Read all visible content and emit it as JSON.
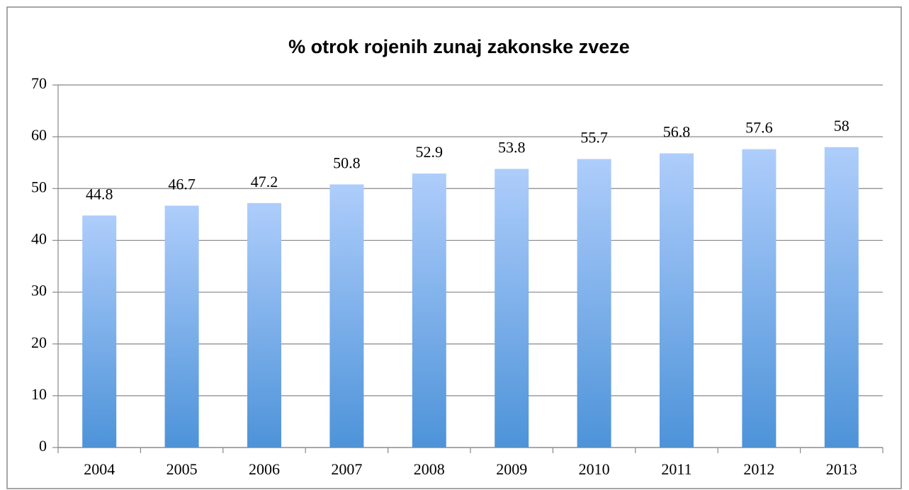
{
  "chart_data": {
    "type": "bar",
    "title": "% otrok rojenih zunaj zakonske zveze",
    "categories": [
      "2004",
      "2005",
      "2006",
      "2007",
      "2008",
      "2009",
      "2010",
      "2011",
      "2012",
      "2013"
    ],
    "values": [
      44.8,
      46.7,
      47.2,
      50.8,
      52.9,
      53.8,
      55.7,
      56.8,
      57.6,
      58
    ],
    "gradient": [
      "#aecdfb",
      "#4d93d9"
    ],
    "ylim": [
      0,
      70
    ],
    "yticks": [
      0,
      10,
      20,
      30,
      40,
      50,
      60,
      70
    ],
    "grid": true
  }
}
